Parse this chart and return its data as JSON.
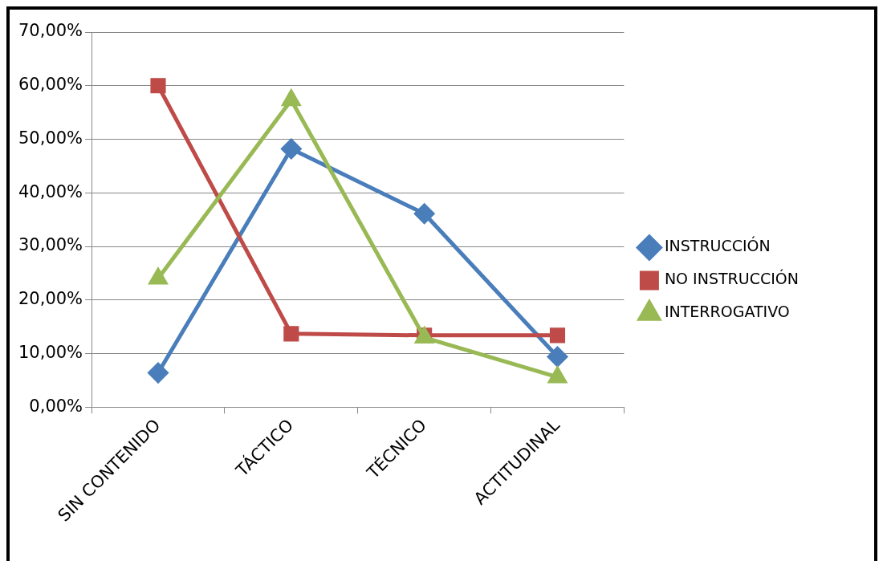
{
  "chart_data": {
    "type": "line",
    "categories": [
      "SIN CONTENIDO",
      "TÁCTICO",
      "TÉCNICO",
      "ACTITUDINAL"
    ],
    "series": [
      {
        "name": "INSTRUCCIÓN",
        "color": "#4a7ebb",
        "marker": "diamond",
        "values": [
          6.4,
          48.2,
          36.1,
          9.4
        ]
      },
      {
        "name": "NO INSTRUCCIÓN",
        "color": "#be4b48",
        "marker": "square",
        "values": [
          60.0,
          13.7,
          13.4,
          13.4
        ]
      },
      {
        "name": "INTERROGATIVO",
        "color": "#98b954",
        "marker": "triangle",
        "values": [
          24.0,
          57.3,
          13.0,
          5.6
        ]
      }
    ],
    "ylim": [
      0,
      70
    ],
    "yticks": [
      {
        "value": 0,
        "label": "0,00%"
      },
      {
        "value": 10,
        "label": "10,00%"
      },
      {
        "value": 20,
        "label": "20,00%"
      },
      {
        "value": 30,
        "label": "30,00%"
      },
      {
        "value": 40,
        "label": "40,00%"
      },
      {
        "value": 50,
        "label": "50,00%"
      },
      {
        "value": 60,
        "label": "60,00%"
      },
      {
        "value": 70,
        "label": "70,00%"
      }
    ],
    "grid": "y",
    "legend": "right",
    "line_style": "solid"
  }
}
